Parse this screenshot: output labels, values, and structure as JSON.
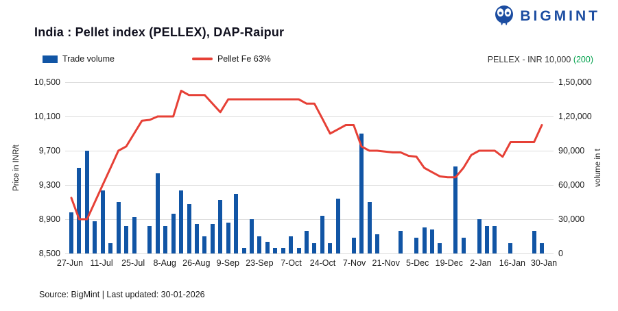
{
  "header": {
    "title": "India : Pellet index (PELLEX), DAP-Raipur",
    "brand": "BIGMINT"
  },
  "legend": {
    "bar_label": "Trade volume",
    "line_label": "Pellet Fe 63%"
  },
  "annotation": {
    "label": "PELLEX - INR 10,000",
    "change": "(200)"
  },
  "colors": {
    "bar": "#1155A5",
    "line": "#E64036",
    "brand": "#1C4DA1",
    "green": "#00A14B",
    "grid": "#DCDCDC"
  },
  "footer": {
    "source": "Source: BigMint | Last updated: 30-01-2026"
  },
  "chart_data": {
    "type": "combo (bar + line)",
    "title": "India : Pellet index (PELLEX), DAP-Raipur",
    "legend_position": "top",
    "grid": "horizontal only",
    "x_tick_labels": [
      "27-Jun",
      "11-Jul",
      "25-Jul",
      "8-Aug",
      "26-Aug",
      "9-Sep",
      "23-Sep",
      "7-Oct",
      "24-Oct",
      "7-Nov",
      "21-Nov",
      "5-Dec",
      "19-Dec",
      "2-Jan",
      "16-Jan",
      "30-Jan"
    ],
    "price_axis": {
      "label": "Price in INR/t",
      "min": 8500,
      "max": 10500,
      "ticks": [
        "10,500",
        "10,100",
        "9,700",
        "9,300",
        "8,900",
        "8,500"
      ]
    },
    "volume_axis": {
      "label": "volume in t",
      "min": 0,
      "max": 150000,
      "ticks": [
        "1,50,000",
        "1,20,000",
        "90,000",
        "60,000",
        "30,000",
        "0"
      ]
    },
    "series": [
      {
        "name": "Trade volume",
        "type": "bar",
        "axis": "right",
        "values": [
          36000,
          75000,
          90000,
          28000,
          55000,
          9000,
          45000,
          24000,
          32000,
          0,
          24000,
          70000,
          24000,
          35000,
          55000,
          43000,
          26000,
          15000,
          26000,
          47000,
          27000,
          52000,
          5000,
          30000,
          15000,
          10000,
          5000,
          5000,
          15000,
          5000,
          20000,
          9000,
          33000,
          9000,
          48000,
          0,
          14000,
          105000,
          45000,
          17000,
          0,
          0,
          20000,
          0,
          14000,
          23000,
          21000,
          9000,
          0,
          76000,
          14000,
          0,
          30000,
          24000,
          24000,
          0,
          9000,
          0,
          0,
          20000,
          9000
        ]
      },
      {
        "name": "Pellet Fe 63%",
        "type": "line",
        "axis": "left",
        "values": [
          9150,
          8900,
          8900,
          9100,
          9300,
          9500,
          9700,
          9750,
          9900,
          10050,
          10060,
          10100,
          10100,
          10100,
          10400,
          10350,
          10350,
          10350,
          10250,
          10150,
          10300,
          10300,
          10300,
          10300,
          10300,
          10300,
          10300,
          10300,
          10300,
          10300,
          10250,
          10250,
          10075,
          9900,
          9950,
          10000,
          10000,
          9750,
          9700,
          9700,
          9690,
          9680,
          9680,
          9640,
          9630,
          9500,
          9450,
          9400,
          9390,
          9390,
          9500,
          9650,
          9700,
          9700,
          9700,
          9630,
          9800,
          9800,
          9800,
          9800,
          10000
        ]
      }
    ],
    "latest": {
      "label": "PELLEX - INR 10,000",
      "change": "(200)"
    }
  }
}
